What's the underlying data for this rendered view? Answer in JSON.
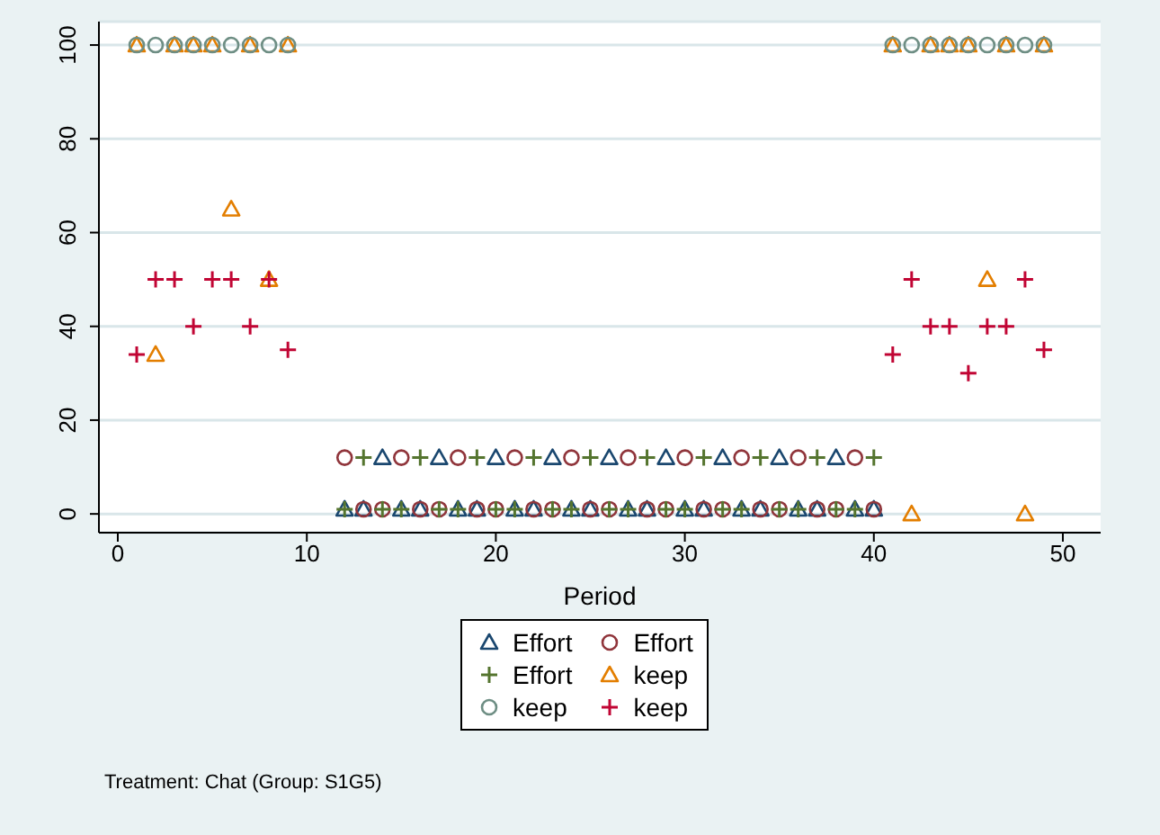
{
  "chart_data": {
    "type": "scatter",
    "xlabel": "Period",
    "xlim": [
      -1,
      52
    ],
    "xticks": [
      0,
      10,
      20,
      30,
      40,
      50
    ],
    "ylim": [
      -4,
      105
    ],
    "yticks": [
      0,
      20,
      40,
      60,
      80,
      100
    ],
    "grid": "y",
    "legend": "bottom",
    "annotations": [
      "Treatment: Chat (Group: S1G5)"
    ],
    "series": [
      {
        "name": "Effort",
        "color": "#1a476f",
        "marker": "triangle",
        "x": [
          12,
          13,
          14,
          15,
          16,
          17,
          18,
          19,
          20,
          21,
          22,
          23,
          24,
          25,
          26,
          27,
          28,
          29,
          30,
          31,
          32,
          33,
          34,
          35,
          36,
          37,
          38,
          39,
          40
        ],
        "values": [
          1,
          1,
          12,
          1,
          1,
          12,
          1,
          1,
          12,
          1,
          1,
          12,
          1,
          1,
          12,
          1,
          1,
          12,
          1,
          1,
          12,
          1,
          1,
          12,
          1,
          1,
          12,
          1,
          1
        ]
      },
      {
        "name": "Effort",
        "color": "#90353b",
        "marker": "circle",
        "x": [
          12,
          13,
          14,
          15,
          16,
          17,
          18,
          19,
          20,
          21,
          22,
          23,
          24,
          25,
          26,
          27,
          28,
          29,
          30,
          31,
          32,
          33,
          34,
          35,
          36,
          37,
          38,
          39,
          40
        ],
        "values": [
          12,
          1,
          1,
          12,
          1,
          1,
          12,
          1,
          1,
          12,
          1,
          1,
          12,
          1,
          1,
          12,
          1,
          1,
          12,
          1,
          1,
          12,
          1,
          1,
          12,
          1,
          1,
          12,
          1
        ]
      },
      {
        "name": "Effort",
        "color": "#55752f",
        "marker": "cross",
        "x": [
          12,
          13,
          14,
          15,
          16,
          17,
          18,
          19,
          20,
          21,
          22,
          23,
          24,
          25,
          26,
          27,
          28,
          29,
          30,
          31,
          32,
          33,
          34,
          35,
          36,
          37,
          38,
          39,
          40
        ],
        "values": [
          1,
          12,
          1,
          1,
          12,
          1,
          1,
          12,
          1,
          1,
          12,
          1,
          1,
          12,
          1,
          1,
          12,
          1,
          1,
          12,
          1,
          1,
          12,
          1,
          1,
          12,
          1,
          1,
          12
        ]
      },
      {
        "name": "keep",
        "color": "#e37e00",
        "marker": "triangle",
        "x": [
          1,
          2,
          3,
          4,
          5,
          6,
          7,
          8,
          9,
          41,
          42,
          43,
          44,
          45,
          46,
          47,
          48,
          49
        ],
        "values": [
          100,
          34,
          100,
          100,
          100,
          65,
          100,
          50,
          100,
          100,
          0,
          100,
          100,
          100,
          50,
          100,
          0,
          100
        ]
      },
      {
        "name": "keep",
        "color": "#6e8e84",
        "marker": "circle",
        "x": [
          1,
          2,
          3,
          4,
          5,
          6,
          7,
          8,
          9,
          41,
          42,
          43,
          44,
          45,
          46,
          47,
          48,
          49
        ],
        "values": [
          100,
          100,
          100,
          100,
          100,
          100,
          100,
          100,
          100,
          100,
          100,
          100,
          100,
          100,
          100,
          100,
          100,
          100
        ]
      },
      {
        "name": "keep",
        "color": "#c10534",
        "marker": "cross",
        "x": [
          1,
          2,
          3,
          4,
          5,
          6,
          7,
          8,
          9,
          41,
          42,
          43,
          44,
          45,
          46,
          47,
          48,
          49
        ],
        "values": [
          34,
          50,
          50,
          40,
          50,
          50,
          40,
          50,
          35,
          34,
          50,
          40,
          40,
          30,
          40,
          40,
          50,
          35
        ]
      }
    ]
  }
}
